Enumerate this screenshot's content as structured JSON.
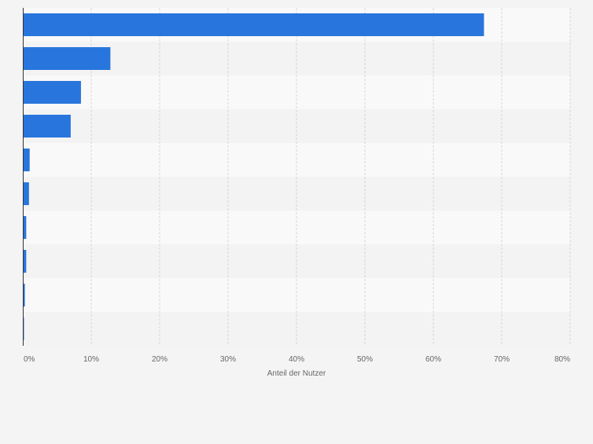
{
  "chart_data": {
    "type": "bar",
    "orientation": "horizontal",
    "title": "",
    "xlabel": "Anteil der Nutzer",
    "ylabel": "",
    "xlim": [
      0,
      80
    ],
    "x_ticks": [
      0,
      10,
      20,
      30,
      40,
      50,
      60,
      70,
      80
    ],
    "x_tick_labels": [
      "0%",
      "10%",
      "20%",
      "30%",
      "40%",
      "50%",
      "60%",
      "70%",
      "80%"
    ],
    "categories": [
      "",
      "",
      "",
      "",
      "",
      "",
      "",
      "",
      "",
      ""
    ],
    "values": [
      67.4,
      12.8,
      8.5,
      7.0,
      1.0,
      0.9,
      0.5,
      0.5,
      0.3,
      0.1
    ],
    "grid": true,
    "legend": "none",
    "colors": {
      "bar": "#2876dd",
      "band_light": "#f9f9f9",
      "band_dark": "#f3f3f3",
      "grid": "#d6d6d6",
      "axis": "#333333",
      "tick_text": "#666666"
    }
  }
}
